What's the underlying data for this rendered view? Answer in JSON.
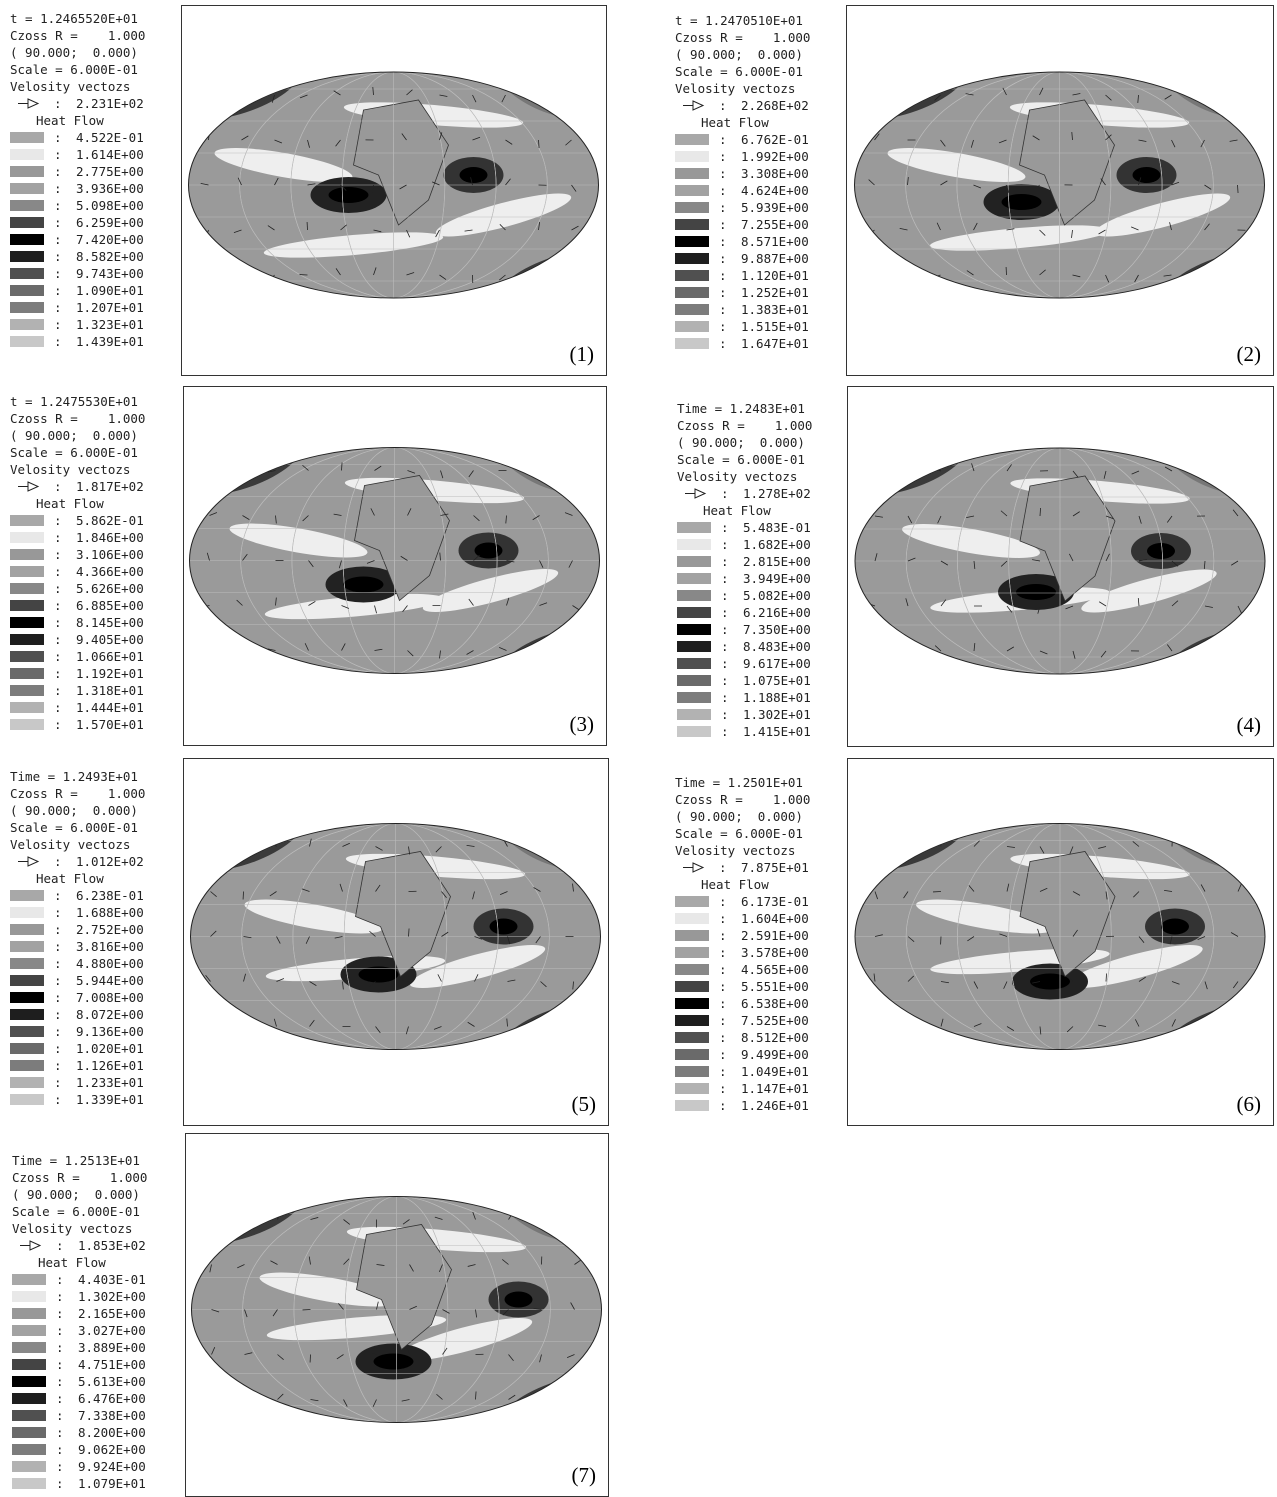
{
  "separator": ":",
  "panels": [
    {
      "time": "t = 1.2465520E+01",
      "cross": "Czoss R =    1.000",
      "coords": "( 90.000;  0.000)",
      "scale": "Scale = 6.000E-01",
      "vectors": "Velosity vectozs",
      "arrow": "2.231E+02",
      "heat": "Heat Flow",
      "levels": [
        "4.522E-01",
        "1.614E+00",
        "2.775E+00",
        "3.936E+00",
        "5.098E+00",
        "6.259E+00",
        "7.420E+00",
        "8.582E+00",
        "9.743E+00",
        "1.090E+01",
        "1.207E+01",
        "1.323E+01",
        "1.439E+01"
      ],
      "label": "(1)"
    },
    {
      "time": "t = 1.2470510E+01",
      "cross": "Czoss R =    1.000",
      "coords": "( 90.000;  0.000)",
      "scale": "Scale = 6.000E-01",
      "vectors": "Velosity vectozs",
      "arrow": "2.268E+02",
      "heat": "Heat Flow",
      "levels": [
        "6.762E-01",
        "1.992E+00",
        "3.308E+00",
        "4.624E+00",
        "5.939E+00",
        "7.255E+00",
        "8.571E+00",
        "9.887E+00",
        "1.120E+01",
        "1.252E+01",
        "1.383E+01",
        "1.515E+01",
        "1.647E+01"
      ],
      "label": "(2)"
    },
    {
      "time": "t = 1.2475530E+01",
      "cross": "Czoss R =    1.000",
      "coords": "( 90.000;  0.000)",
      "scale": "Scale = 6.000E-01",
      "vectors": "Velosity vectozs",
      "arrow": "1.817E+02",
      "heat": "Heat Flow",
      "levels": [
        "5.862E-01",
        "1.846E+00",
        "3.106E+00",
        "4.366E+00",
        "5.626E+00",
        "6.885E+00",
        "8.145E+00",
        "9.405E+00",
        "1.066E+01",
        "1.192E+01",
        "1.318E+01",
        "1.444E+01",
        "1.570E+01"
      ],
      "label": "(3)"
    },
    {
      "time": "Time = 1.2483E+01",
      "cross": "Czoss R =    1.000",
      "coords": "( 90.000;  0.000)",
      "scale": "Scale = 6.000E-01",
      "vectors": "Velosity vectozs",
      "arrow": "1.278E+02",
      "heat": "Heat Flow",
      "levels": [
        "5.483E-01",
        "1.682E+00",
        "2.815E+00",
        "3.949E+00",
        "5.082E+00",
        "6.216E+00",
        "7.350E+00",
        "8.483E+00",
        "9.617E+00",
        "1.075E+01",
        "1.188E+01",
        "1.302E+01",
        "1.415E+01"
      ],
      "label": "(4)"
    },
    {
      "time": "Time = 1.2493E+01",
      "cross": "Czoss R =    1.000",
      "coords": "( 90.000;  0.000)",
      "scale": "Scale = 6.000E-01",
      "vectors": "Velosity vectozs",
      "arrow": "1.012E+02",
      "heat": "Heat Flow",
      "levels": [
        "6.238E-01",
        "1.688E+00",
        "2.752E+00",
        "3.816E+00",
        "4.880E+00",
        "5.944E+00",
        "7.008E+00",
        "8.072E+00",
        "9.136E+00",
        "1.020E+01",
        "1.126E+01",
        "1.233E+01",
        "1.339E+01"
      ],
      "label": "(5)"
    },
    {
      "time": "Time = 1.2501E+01",
      "cross": "Czoss R =    1.000",
      "coords": "( 90.000;  0.000)",
      "scale": "Scale = 6.000E-01",
      "vectors": "Velosity vectozs",
      "arrow": "7.875E+01",
      "heat": "Heat Flow",
      "levels": [
        "6.173E-01",
        "1.604E+00",
        "2.591E+00",
        "3.578E+00",
        "4.565E+00",
        "5.551E+00",
        "6.538E+00",
        "7.525E+00",
        "8.512E+00",
        "9.499E+00",
        "1.049E+01",
        "1.147E+01",
        "1.246E+01"
      ],
      "label": "(6)"
    },
    {
      "time": "Time = 1.2513E+01",
      "cross": "Czoss R =    1.000",
      "coords": "( 90.000;  0.000)",
      "scale": "Scale = 6.000E-01",
      "vectors": "Velosity vectozs",
      "arrow": "1.853E+02",
      "heat": "Heat Flow",
      "levels": [
        "4.403E-01",
        "1.302E+00",
        "2.165E+00",
        "3.027E+00",
        "3.889E+00",
        "4.751E+00",
        "5.613E+00",
        "6.476E+00",
        "7.338E+00",
        "8.200E+00",
        "9.062E+00",
        "9.924E+00",
        "1.079E+01"
      ],
      "label": "(7)"
    }
  ]
}
